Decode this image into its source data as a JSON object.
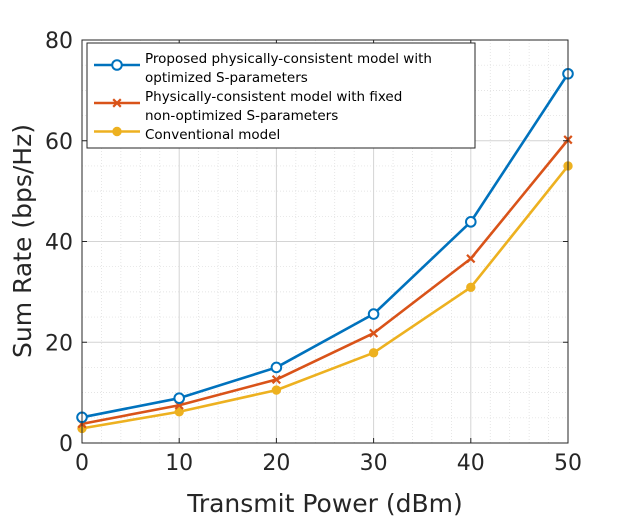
{
  "chart_data": {
    "type": "line",
    "title": "",
    "xlabel": "Transmit Power (dBm)",
    "ylabel": "Sum Rate (bps/Hz)",
    "x": [
      0,
      10,
      20,
      30,
      40,
      50
    ],
    "xlim": [
      0,
      50
    ],
    "ylim": [
      0,
      80
    ],
    "xticks": [
      0,
      10,
      20,
      30,
      40,
      50
    ],
    "yticks": [
      0,
      20,
      40,
      60,
      80
    ],
    "grid": true,
    "minor_grid": true,
    "legend_position": "top-left",
    "series": [
      {
        "name": "Proposed physically-consistent model with optimized S-parameters",
        "legend_lines": [
          "Proposed physically-consistent model with",
          "optimized S-parameters"
        ],
        "values": [
          5.1,
          8.9,
          15.0,
          25.6,
          43.9,
          73.3
        ],
        "color": "#0072BD",
        "marker": "circle"
      },
      {
        "name": "Physically-consistent model with fixed non-optimized S-parameters",
        "legend_lines": [
          "Physically-consistent model with fixed",
          "non-optimized S-parameters"
        ],
        "values": [
          3.8,
          7.5,
          12.6,
          21.8,
          36.6,
          60.2
        ],
        "color": "#D95319",
        "marker": "x"
      },
      {
        "name": "Conventional model",
        "legend_lines": [
          "Conventional model"
        ],
        "values": [
          2.9,
          6.2,
          10.5,
          17.9,
          30.9,
          55.0
        ],
        "color": "#EDB120",
        "marker": "dot"
      }
    ]
  }
}
